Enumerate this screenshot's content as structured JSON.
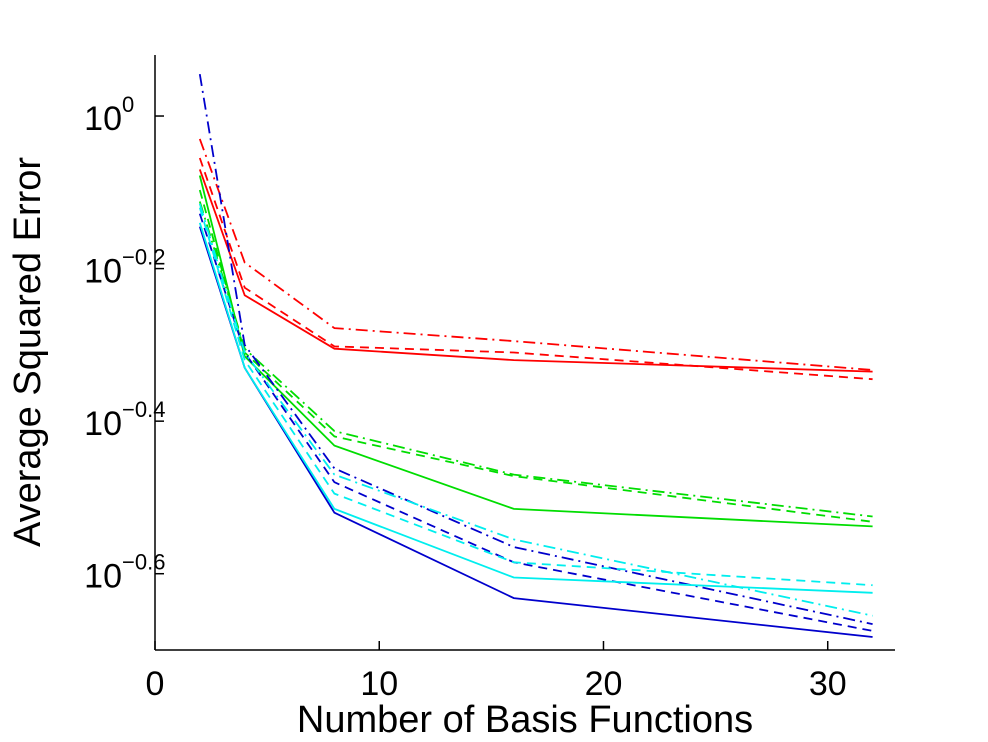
{
  "chart_data": {
    "type": "line",
    "title": "",
    "xlabel": "Number of Basis Functions",
    "ylabel": "Average Squared Error",
    "xlim": [
      0,
      33
    ],
    "ylim_log10": [
      -0.7,
      0.08
    ],
    "y_scale": "log",
    "grid": false,
    "legend": "none",
    "x_ticks": [
      0,
      10,
      20,
      30
    ],
    "x_tick_labels": [
      "0",
      "10",
      "20",
      "30"
    ],
    "y_ticks_log10": [
      0,
      -0.2,
      -0.4,
      -0.6
    ],
    "y_tick_labels": [
      {
        "base": "10",
        "exp": "0"
      },
      {
        "base": "10",
        "exp": "−0.2"
      },
      {
        "base": "10",
        "exp": "−0.4"
      },
      {
        "base": "10",
        "exp": "−0.6"
      }
    ],
    "x": [
      2,
      4,
      8,
      16,
      32
    ],
    "series": [
      {
        "color": "#ff0000",
        "style": "solid",
        "log10_values": [
          -0.07,
          -0.235,
          -0.305,
          -0.32,
          -0.335
        ]
      },
      {
        "color": "#ff0000",
        "style": "dashed",
        "log10_values": [
          -0.055,
          -0.225,
          -0.302,
          -0.31,
          -0.345
        ]
      },
      {
        "color": "#ff0000",
        "style": "dashdot",
        "log10_values": [
          -0.03,
          -0.192,
          -0.278,
          -0.295,
          -0.333
        ]
      },
      {
        "color": "#00dd00",
        "style": "solid",
        "log10_values": [
          -0.078,
          -0.315,
          -0.432,
          -0.515,
          -0.538
        ]
      },
      {
        "color": "#00dd00",
        "style": "dashed",
        "log10_values": [
          -0.097,
          -0.31,
          -0.42,
          -0.472,
          -0.532
        ]
      },
      {
        "color": "#00dd00",
        "style": "dashdot",
        "log10_values": [
          -0.112,
          -0.305,
          -0.413,
          -0.47,
          -0.525
        ]
      },
      {
        "color": "#0000cc",
        "style": "solid",
        "log10_values": [
          -0.145,
          -0.33,
          -0.52,
          -0.632,
          -0.683
        ]
      },
      {
        "color": "#0000cc",
        "style": "dashed",
        "log10_values": [
          -0.128,
          -0.31,
          -0.48,
          -0.585,
          -0.675
        ]
      },
      {
        "color": "#0000cc",
        "style": "dashdot",
        "log10_values": [
          0.055,
          -0.3,
          -0.462,
          -0.565,
          -0.666
        ]
      },
      {
        "color": "#00eeee",
        "style": "solid",
        "log10_values": [
          -0.14,
          -0.33,
          -0.515,
          -0.605,
          -0.625
        ]
      },
      {
        "color": "#00eeee",
        "style": "dashed",
        "log10_values": [
          -0.12,
          -0.32,
          -0.495,
          -0.585,
          -0.615
        ]
      },
      {
        "color": "#00eeee",
        "style": "dashdot",
        "log10_values": [
          -0.115,
          -0.31,
          -0.47,
          -0.555,
          -0.655
        ]
      }
    ]
  }
}
